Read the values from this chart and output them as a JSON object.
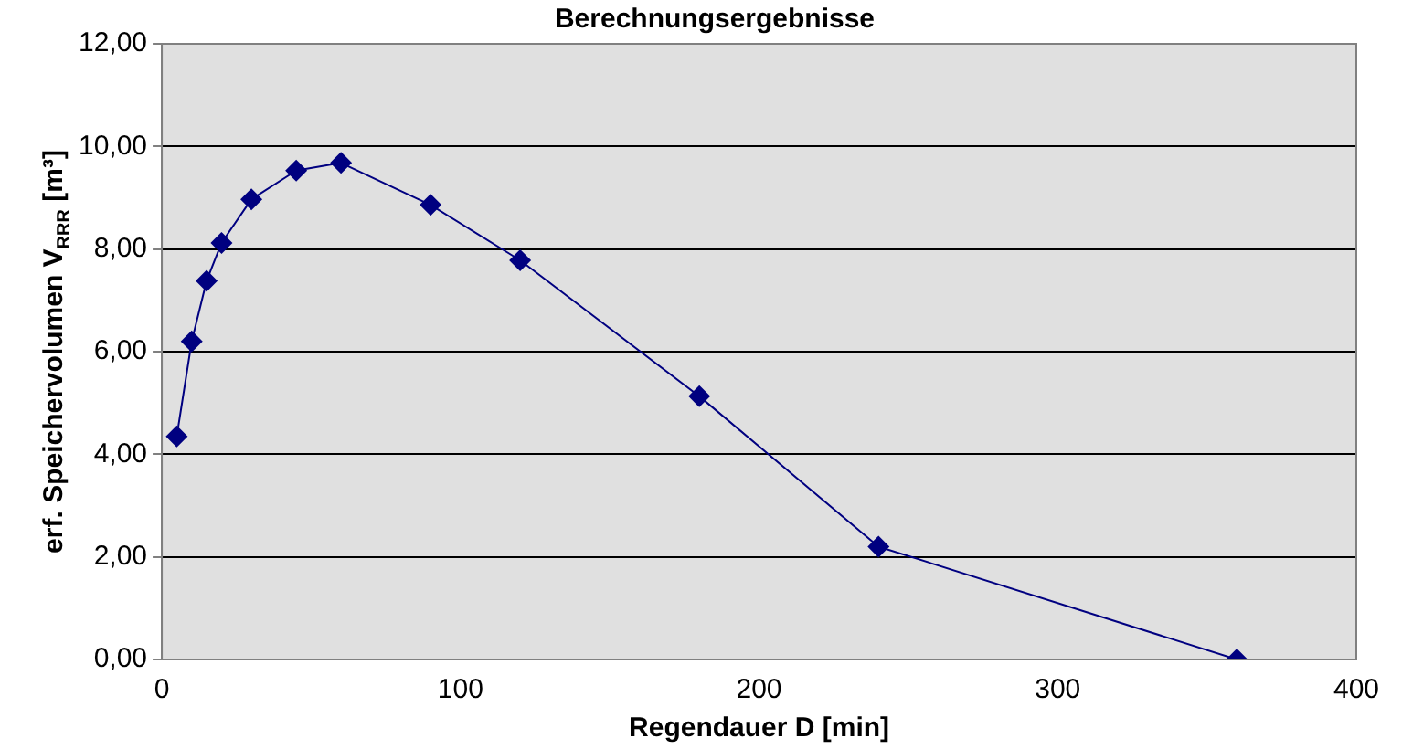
{
  "chart_data": {
    "type": "line",
    "title": "Berechnungsergebnisse",
    "xlabel": "Regendauer D [min]",
    "ylabel": "erf. Speichervolumen V$_{RRR}$ [m³]",
    "x": [
      5,
      10,
      15,
      20,
      30,
      45,
      60,
      90,
      120,
      180,
      240,
      360
    ],
    "series": [
      {
        "color": "#000080",
        "values": [
          4.35,
          6.2,
          7.38,
          8.12,
          8.97,
          9.53,
          9.68,
          8.86,
          7.78,
          5.13,
          2.2,
          0
        ]
      }
    ],
    "xlim": [
      0,
      400
    ],
    "xticks": [
      0,
      100,
      200,
      300,
      400
    ],
    "ylim": [
      0,
      12
    ],
    "yticks": [
      {
        "value": 0,
        "label": "0,00"
      },
      {
        "value": 2,
        "label": "2,00"
      },
      {
        "value": 4,
        "label": "4,00"
      },
      {
        "value": 6,
        "label": "6,00"
      },
      {
        "value": 8,
        "label": "8,00"
      },
      {
        "value": 10,
        "label": "10,00"
      },
      {
        "value": 12,
        "label": "12,00"
      }
    ],
    "grid": "y",
    "legend": false,
    "marker": "diamond",
    "line_style": "solid"
  }
}
